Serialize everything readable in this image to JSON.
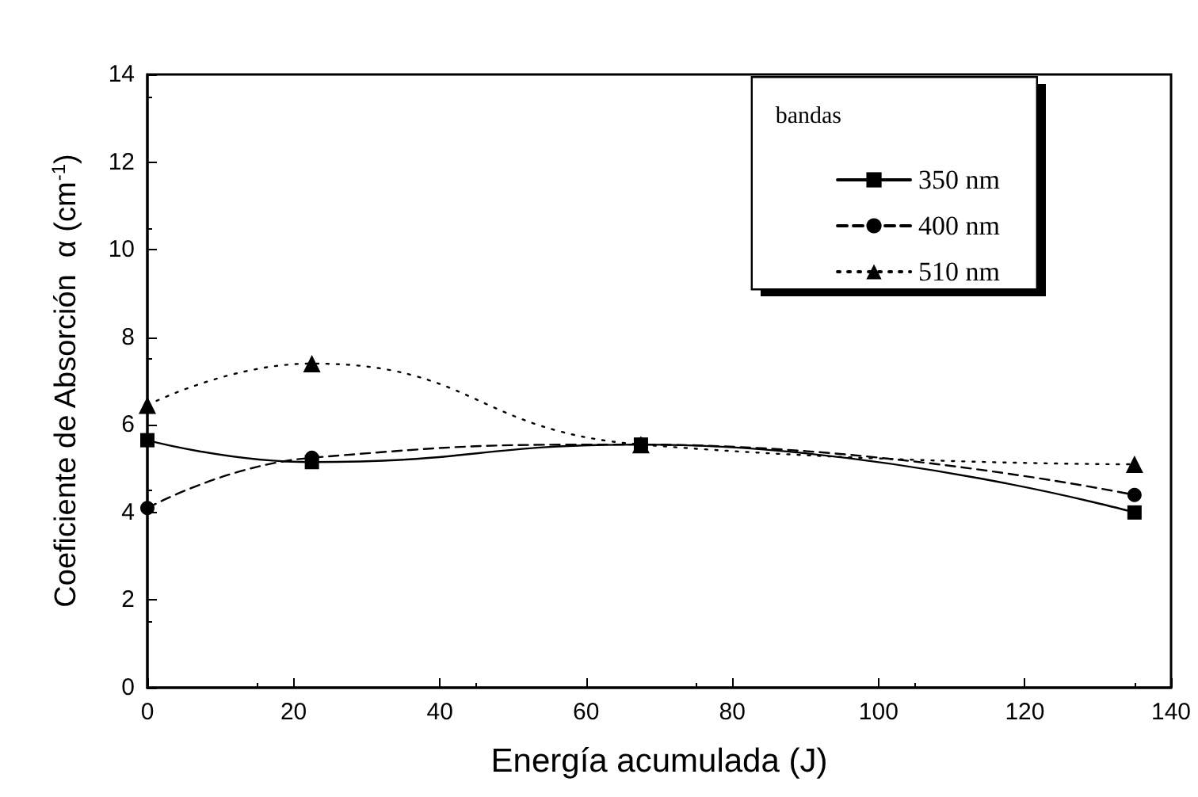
{
  "chart_data": {
    "type": "line",
    "xlabel": "Energía acumulada (J)",
    "ylabel": "Coeficiente de Absorción  α (cm$^{-1}$)",
    "legend_title": "bandas",
    "x": [
      0,
      22.5,
      67.5,
      135
    ],
    "series": [
      {
        "name": "350 nm",
        "color": "#000000",
        "values": [
          5.65,
          5.15,
          5.55,
          4.0
        ],
        "marker": "square",
        "line_style": "solid"
      },
      {
        "name": "400 nm",
        "color": "#000000",
        "values": [
          4.1,
          5.25,
          5.55,
          4.4
        ],
        "marker": "circle",
        "line_style": "dashed"
      },
      {
        "name": "510 nm",
        "color": "#000000",
        "values": [
          6.45,
          7.4,
          5.55,
          5.1
        ],
        "marker": "triangle",
        "line_style": "dotted"
      }
    ],
    "xlim": [
      0,
      140
    ],
    "xticks": [
      0,
      20,
      40,
      60,
      80,
      100,
      120,
      140
    ],
    "ylim": [
      0,
      14
    ],
    "yticks": [
      0,
      2,
      4,
      6,
      8,
      10,
      12,
      14
    ],
    "grid": false,
    "legend": "top right"
  }
}
